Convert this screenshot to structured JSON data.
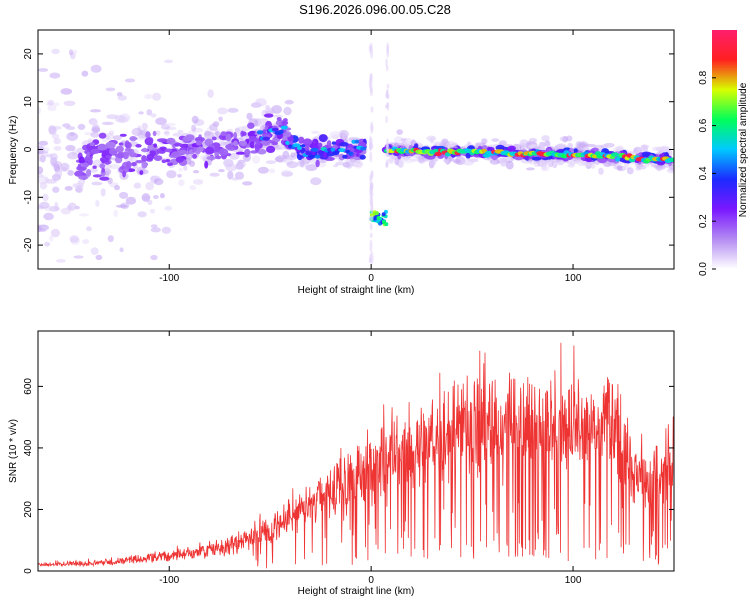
{
  "title": "S196.2026.096.00.05.C28",
  "colors": {
    "snr_line": "#ee3333",
    "colormap": [
      "#ffffff",
      "#b38bf2",
      "#7a18ff",
      "#1b2bff",
      "#00c8ff",
      "#00ff5a",
      "#d8ff00",
      "#ff2020",
      "#ff1f6d"
    ]
  },
  "chart_data": [
    {
      "type": "heatmap",
      "xlabel": "Height of straight line (km)",
      "ylabel": "Frequency (Hz)",
      "xlim": [
        -165,
        150
      ],
      "ylim": [
        -25,
        25
      ],
      "xticks": [
        -100,
        0,
        100
      ],
      "yticks": [
        -20,
        -10,
        0,
        10,
        20
      ],
      "grid": false,
      "colorbar": {
        "label": "Normalized spectral amplitude",
        "range": [
          0,
          1
        ],
        "ticks": [
          "0.0",
          "0.2",
          "0.4",
          "0.6",
          "0.8"
        ]
      },
      "ridge": {
        "note_free": true,
        "points": [
          [
            -120,
            -1.5
          ],
          [
            -100,
            -0.5
          ],
          [
            -80,
            0
          ],
          [
            -60,
            1.5
          ],
          [
            -45,
            4
          ],
          [
            -35,
            0
          ],
          [
            -20,
            0
          ],
          [
            -10,
            0
          ],
          [
            10,
            0
          ],
          [
            30,
            -0.5
          ],
          [
            60,
            -0.5
          ],
          [
            80,
            -1
          ],
          [
            100,
            -1
          ],
          [
            120,
            -1.5
          ],
          [
            148,
            -2
          ]
        ],
        "mirror_segment": {
          "x": [
            0,
            8
          ],
          "y": [
            -16,
            -13
          ]
        }
      }
    },
    {
      "type": "line",
      "xlabel": "Height of straight line (km)",
      "ylabel": "SNR (10 * v/v)",
      "xlim": [
        -165,
        150
      ],
      "ylim": [
        0,
        780
      ],
      "xticks": [
        -100,
        0,
        100
      ],
      "yticks": [
        0,
        200,
        400,
        600
      ],
      "grid": false,
      "series": [
        {
          "envelope_x": [
            -165,
            -150,
            -130,
            -110,
            -90,
            -70,
            -60,
            -50,
            -40,
            -30,
            -20,
            -10,
            0,
            10,
            20,
            30,
            40,
            50,
            60,
            70,
            80,
            90,
            100,
            110,
            120,
            125,
            130,
            135,
            140,
            145,
            150
          ],
          "envelope_y": [
            25,
            28,
            35,
            50,
            70,
            100,
            130,
            170,
            220,
            260,
            300,
            340,
            400,
            430,
            470,
            500,
            530,
            560,
            580,
            570,
            560,
            570,
            580,
            560,
            560,
            510,
            370,
            360,
            380,
            420,
            470
          ]
        }
      ]
    }
  ]
}
